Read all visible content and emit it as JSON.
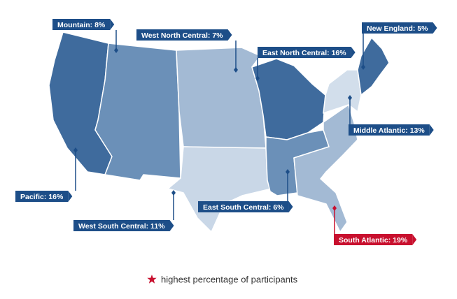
{
  "regions": [
    {
      "label": "Pacific: 16%",
      "color": "#3f6b9d",
      "label_color": "#1d4e88"
    },
    {
      "label": "Mountain: 8%",
      "color": "#6b90b8",
      "label_color": "#1d4e88"
    },
    {
      "label": "West North Central: 7%",
      "color": "#a3bad4",
      "label_color": "#1d4e88"
    },
    {
      "label": "West South Central: 11%",
      "color": "#c9d7e7",
      "label_color": "#1d4e88"
    },
    {
      "label": "East North Central: 16%",
      "color": "#3f6b9d",
      "label_color": "#1d4e88"
    },
    {
      "label": "East South Central: 6%",
      "color": "#6b90b8",
      "label_color": "#1d4e88"
    },
    {
      "label": "South Atlantic: 19%",
      "color": "#a3bad4",
      "label_color": "#c8102e"
    },
    {
      "label": "Middle Atlantic: 13%",
      "color": "#d2deeb",
      "label_color": "#1d4e88"
    },
    {
      "label": "New England: 5%",
      "color": "#3f6b9d",
      "label_color": "#1d4e88"
    }
  ],
  "legend": {
    "text": "highest percentage of participants",
    "color": "#c8102e"
  }
}
